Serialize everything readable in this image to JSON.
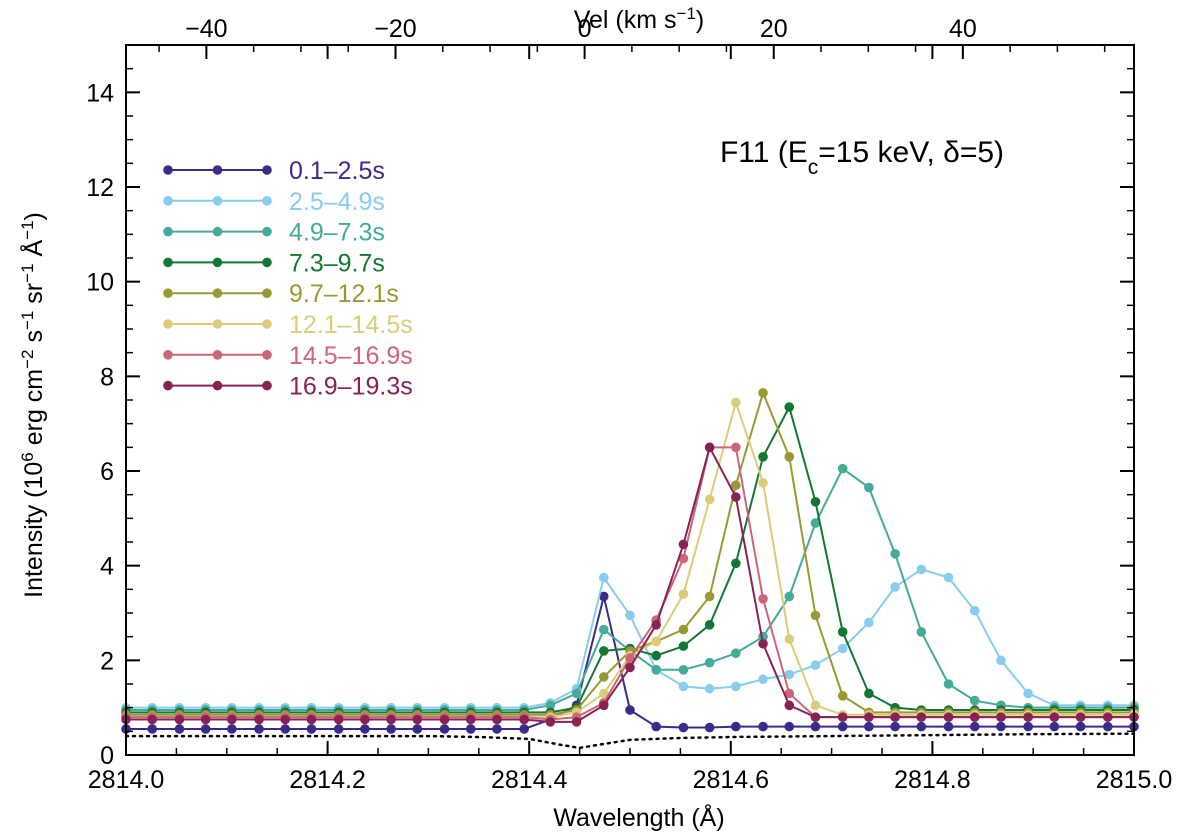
{
  "chart_data": {
    "type": "line",
    "annotation": "F11 (E_c=15 keV, δ=5)",
    "annotation_parts": {
      "main": "F11 (E",
      "sub": "c",
      "rest": "=15 keV, δ=5)"
    },
    "xlabel": "Wavelength (Å)",
    "ylabel": "Intensity (10^6 erg cm^-2 s^-1 sr^-1 Å^-1)",
    "top_xlabel": "Vel (km s^-1)",
    "xlim": [
      2814.0,
      2815.0
    ],
    "ylim": [
      0,
      15
    ],
    "top_xlim": [
      -48.5,
      58.1
    ],
    "x_ticks": [
      "2814.0",
      "2814.2",
      "2814.4",
      "2814.6",
      "2814.8",
      "2815.0"
    ],
    "y_ticks": [
      "0",
      "2",
      "4",
      "6",
      "8",
      "10",
      "12",
      "14"
    ],
    "top_x_ticks": [
      "−40",
      "−20",
      "0",
      "20",
      "40"
    ],
    "legend_position": "top-left",
    "x": [
      2814.0,
      2814.026,
      2814.053,
      2814.079,
      2814.105,
      2814.132,
      2814.158,
      2814.184,
      2814.211,
      2814.237,
      2814.263,
      2814.289,
      2814.316,
      2814.342,
      2814.368,
      2814.395,
      2814.421,
      2814.447,
      2814.474,
      2814.5,
      2814.526,
      2814.553,
      2814.579,
      2814.605,
      2814.632,
      2814.658,
      2814.684,
      2814.711,
      2814.737,
      2814.763,
      2814.789,
      2814.816,
      2814.842,
      2814.868,
      2814.895,
      2814.921,
      2814.947,
      2814.974,
      2815.0
    ],
    "series": [
      {
        "name": "0.1–2.5s",
        "color": "#3a2a8a",
        "values": [
          0.55,
          0.55,
          0.55,
          0.55,
          0.55,
          0.55,
          0.55,
          0.55,
          0.55,
          0.55,
          0.55,
          0.55,
          0.55,
          0.55,
          0.55,
          0.55,
          0.75,
          1.05,
          3.35,
          0.95,
          0.6,
          0.58,
          0.58,
          0.6,
          0.6,
          0.6,
          0.6,
          0.6,
          0.6,
          0.6,
          0.6,
          0.6,
          0.6,
          0.6,
          0.6,
          0.6,
          0.6,
          0.6,
          0.6
        ]
      },
      {
        "name": "2.5–4.9s",
        "color": "#88ccee",
        "values": [
          1.0,
          1.0,
          1.0,
          1.0,
          1.0,
          1.0,
          1.0,
          1.0,
          1.0,
          1.0,
          1.0,
          1.0,
          1.0,
          1.0,
          1.0,
          1.0,
          1.1,
          1.4,
          3.75,
          2.95,
          1.8,
          1.45,
          1.4,
          1.45,
          1.6,
          1.7,
          1.9,
          2.25,
          2.8,
          3.55,
          3.92,
          3.75,
          3.05,
          2.0,
          1.3,
          1.05,
          1.05,
          1.05,
          1.05
        ]
      },
      {
        "name": "4.9–7.3s",
        "color": "#44aa99",
        "values": [
          0.95,
          0.95,
          0.95,
          0.95,
          0.95,
          0.95,
          0.95,
          0.95,
          0.95,
          0.95,
          0.95,
          0.95,
          0.95,
          0.95,
          0.95,
          0.95,
          1.05,
          1.3,
          2.65,
          2.2,
          1.8,
          1.8,
          1.95,
          2.15,
          2.5,
          3.35,
          4.9,
          6.05,
          5.65,
          4.25,
          2.6,
          1.5,
          1.15,
          1.05,
          1.0,
          1.0,
          1.0,
          1.0,
          1.0
        ]
      },
      {
        "name": "7.3–9.7s",
        "color": "#117733",
        "values": [
          0.9,
          0.9,
          0.9,
          0.9,
          0.9,
          0.9,
          0.9,
          0.9,
          0.9,
          0.9,
          0.9,
          0.9,
          0.9,
          0.9,
          0.9,
          0.9,
          0.9,
          1.0,
          2.2,
          2.25,
          2.1,
          2.3,
          2.75,
          4.05,
          6.3,
          7.35,
          5.35,
          2.6,
          1.3,
          1.0,
          0.95,
          0.95,
          0.95,
          0.95,
          0.95,
          0.95,
          0.95,
          0.95,
          0.95
        ]
      },
      {
        "name": "9.7–12.1s",
        "color": "#999933",
        "values": [
          0.85,
          0.85,
          0.85,
          0.85,
          0.85,
          0.85,
          0.85,
          0.85,
          0.85,
          0.85,
          0.85,
          0.85,
          0.85,
          0.85,
          0.85,
          0.85,
          0.85,
          0.95,
          1.65,
          2.2,
          2.4,
          2.65,
          3.35,
          5.7,
          7.65,
          6.3,
          2.95,
          1.25,
          0.9,
          0.9,
          0.9,
          0.9,
          0.9,
          0.9,
          0.9,
          0.9,
          0.9,
          0.9,
          0.9
        ]
      },
      {
        "name": "12.1–14.5s",
        "color": "#ddcc77",
        "values": [
          0.8,
          0.8,
          0.8,
          0.8,
          0.8,
          0.8,
          0.8,
          0.8,
          0.8,
          0.8,
          0.8,
          0.8,
          0.8,
          0.8,
          0.8,
          0.8,
          0.8,
          0.9,
          1.3,
          2.1,
          2.4,
          3.4,
          5.4,
          7.45,
          5.75,
          2.45,
          1.05,
          0.85,
          0.85,
          0.85,
          0.85,
          0.85,
          0.85,
          0.85,
          0.85,
          0.85,
          0.85,
          0.85,
          0.85
        ]
      },
      {
        "name": "14.5–16.9s",
        "color": "#cc6677",
        "values": [
          0.8,
          0.8,
          0.8,
          0.8,
          0.8,
          0.8,
          0.8,
          0.8,
          0.8,
          0.8,
          0.8,
          0.8,
          0.8,
          0.8,
          0.8,
          0.8,
          0.75,
          0.8,
          1.1,
          2.05,
          2.85,
          4.15,
          6.5,
          6.5,
          3.3,
          1.3,
          0.8,
          0.8,
          0.8,
          0.8,
          0.8,
          0.8,
          0.8,
          0.8,
          0.8,
          0.8,
          0.8,
          0.8,
          0.8
        ]
      },
      {
        "name": "16.9–19.3s",
        "color": "#882255",
        "values": [
          0.75,
          0.75,
          0.75,
          0.75,
          0.75,
          0.75,
          0.75,
          0.75,
          0.75,
          0.75,
          0.75,
          0.75,
          0.75,
          0.75,
          0.75,
          0.75,
          0.7,
          0.7,
          1.05,
          1.85,
          2.75,
          4.45,
          6.5,
          5.45,
          2.35,
          1.05,
          0.8,
          0.8,
          0.8,
          0.8,
          0.8,
          0.8,
          0.8,
          0.8,
          0.8,
          0.8,
          0.8,
          0.8,
          0.8
        ]
      }
    ],
    "background_profile": {
      "style": "dotted",
      "color": "#000000",
      "x": [
        2814.0,
        2814.1,
        2814.2,
        2814.3,
        2814.35,
        2814.4,
        2814.43,
        2814.45,
        2814.47,
        2814.5,
        2814.55,
        2814.6,
        2814.7,
        2814.8,
        2814.9,
        2815.0
      ],
      "values": [
        0.4,
        0.4,
        0.4,
        0.4,
        0.38,
        0.34,
        0.22,
        0.15,
        0.22,
        0.32,
        0.36,
        0.38,
        0.4,
        0.42,
        0.44,
        0.45
      ]
    }
  }
}
